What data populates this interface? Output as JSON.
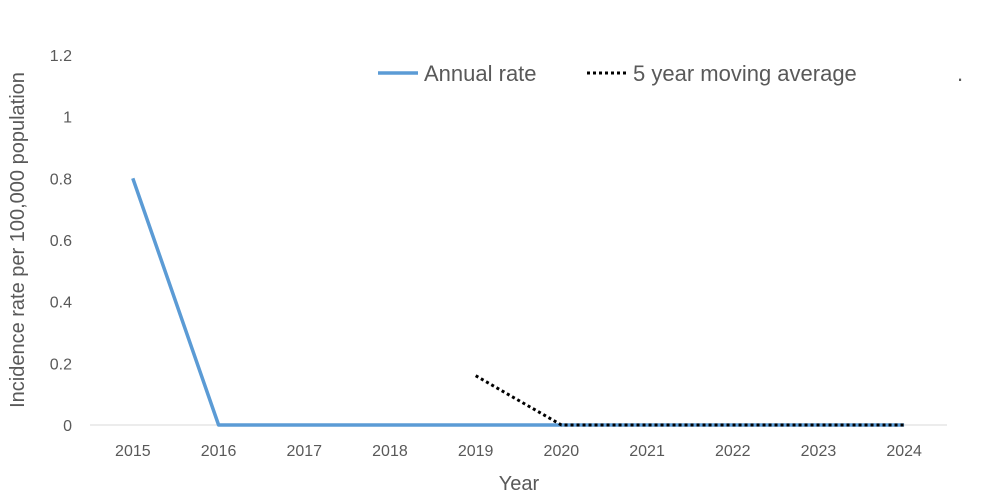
{
  "chart_data": {
    "type": "line",
    "title": "",
    "xlabel": "Year",
    "ylabel": "Incidence rate per 100,000 population",
    "categories": [
      "2015",
      "2016",
      "2017",
      "2018",
      "2019",
      "2020",
      "2021",
      "2022",
      "2023",
      "2024"
    ],
    "yticks": [
      "0",
      "0.2",
      "0.4",
      "0.6",
      "0.8",
      "1",
      "1.2"
    ],
    "ylim": [
      0,
      1.2
    ],
    "grid": false,
    "legend_position": "top",
    "legend_extra_text": ".",
    "series": [
      {
        "name": "Annual rate",
        "color": "#5B9BD5",
        "style": "solid",
        "values": [
          0.8,
          0,
          0,
          0,
          0,
          0,
          0,
          0,
          0,
          0
        ]
      },
      {
        "name": "5 year moving average",
        "color": "#000000",
        "style": "dotted",
        "values": [
          null,
          null,
          null,
          null,
          0.16,
          0,
          0,
          0,
          0,
          0
        ]
      }
    ]
  }
}
